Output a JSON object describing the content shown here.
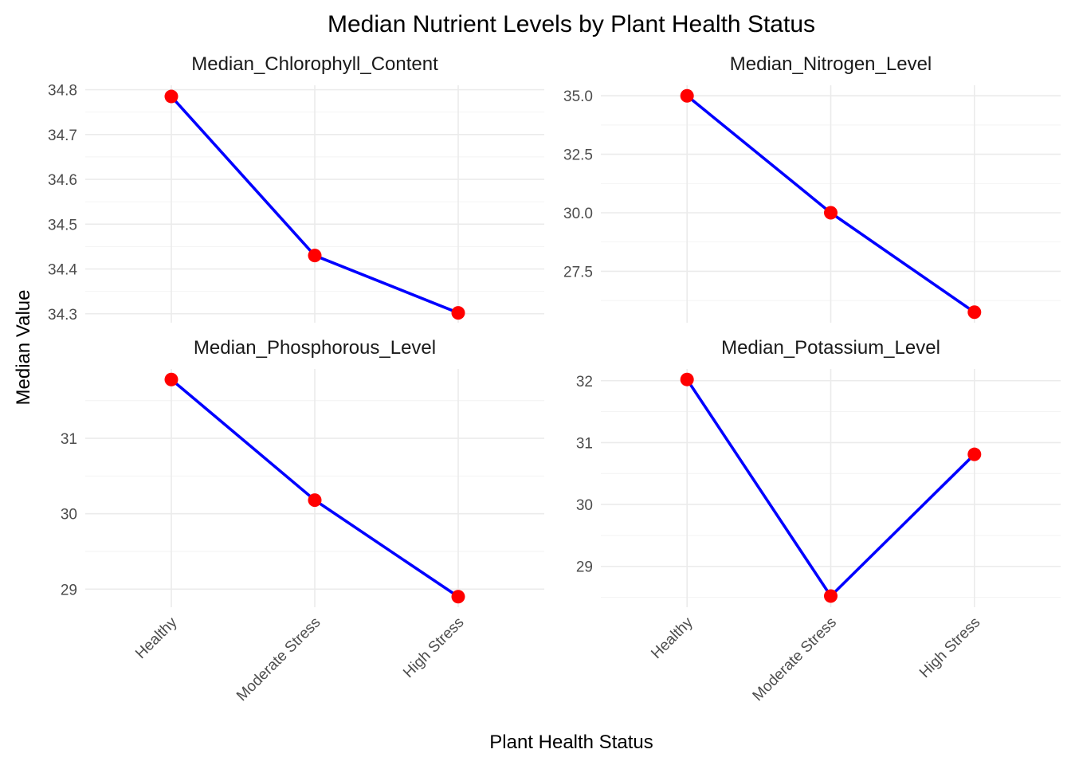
{
  "chart_data": {
    "type": "line",
    "title": "Median Nutrient Levels by Plant Health Status",
    "xlabel": "Plant Health Status",
    "ylabel": "Median Value",
    "categories": [
      "Healthy",
      "Moderate Stress",
      "High Stress"
    ],
    "colors": {
      "line": "#0000ff",
      "point": "#ff0000",
      "grid": "#ebebeb"
    },
    "grid": true,
    "facets": [
      {
        "name": "Median_Chlorophyll_Content",
        "values": [
          34.785,
          34.43,
          34.302
        ],
        "ylim": [
          34.28,
          34.81
        ],
        "yticks": [
          34.3,
          34.4,
          34.5,
          34.6,
          34.7,
          34.8
        ],
        "ytick_labels": [
          "34.3",
          "34.4",
          "34.5",
          "34.6",
          "34.7",
          "34.8"
        ]
      },
      {
        "name": "Median_Nitrogen_Level",
        "values": [
          35.0,
          30.0,
          25.75
        ],
        "ylim": [
          25.3,
          35.45
        ],
        "yticks": [
          27.5,
          30.0,
          32.5,
          35.0
        ],
        "ytick_labels": [
          "27.5",
          "30.0",
          "32.5",
          "35.0"
        ]
      },
      {
        "name": "Median_Phosphorous_Level",
        "values": [
          31.78,
          30.18,
          28.9
        ],
        "ylim": [
          28.76,
          31.92
        ],
        "yticks": [
          29,
          30,
          31
        ],
        "ytick_labels": [
          "29",
          "30",
          "31"
        ]
      },
      {
        "name": "Median_Potassium_Level",
        "values": [
          32.02,
          28.52,
          30.81
        ],
        "ylim": [
          28.34,
          32.19
        ],
        "yticks": [
          29,
          30,
          31,
          32
        ],
        "ytick_labels": [
          "29",
          "30",
          "31",
          "32"
        ]
      }
    ]
  }
}
